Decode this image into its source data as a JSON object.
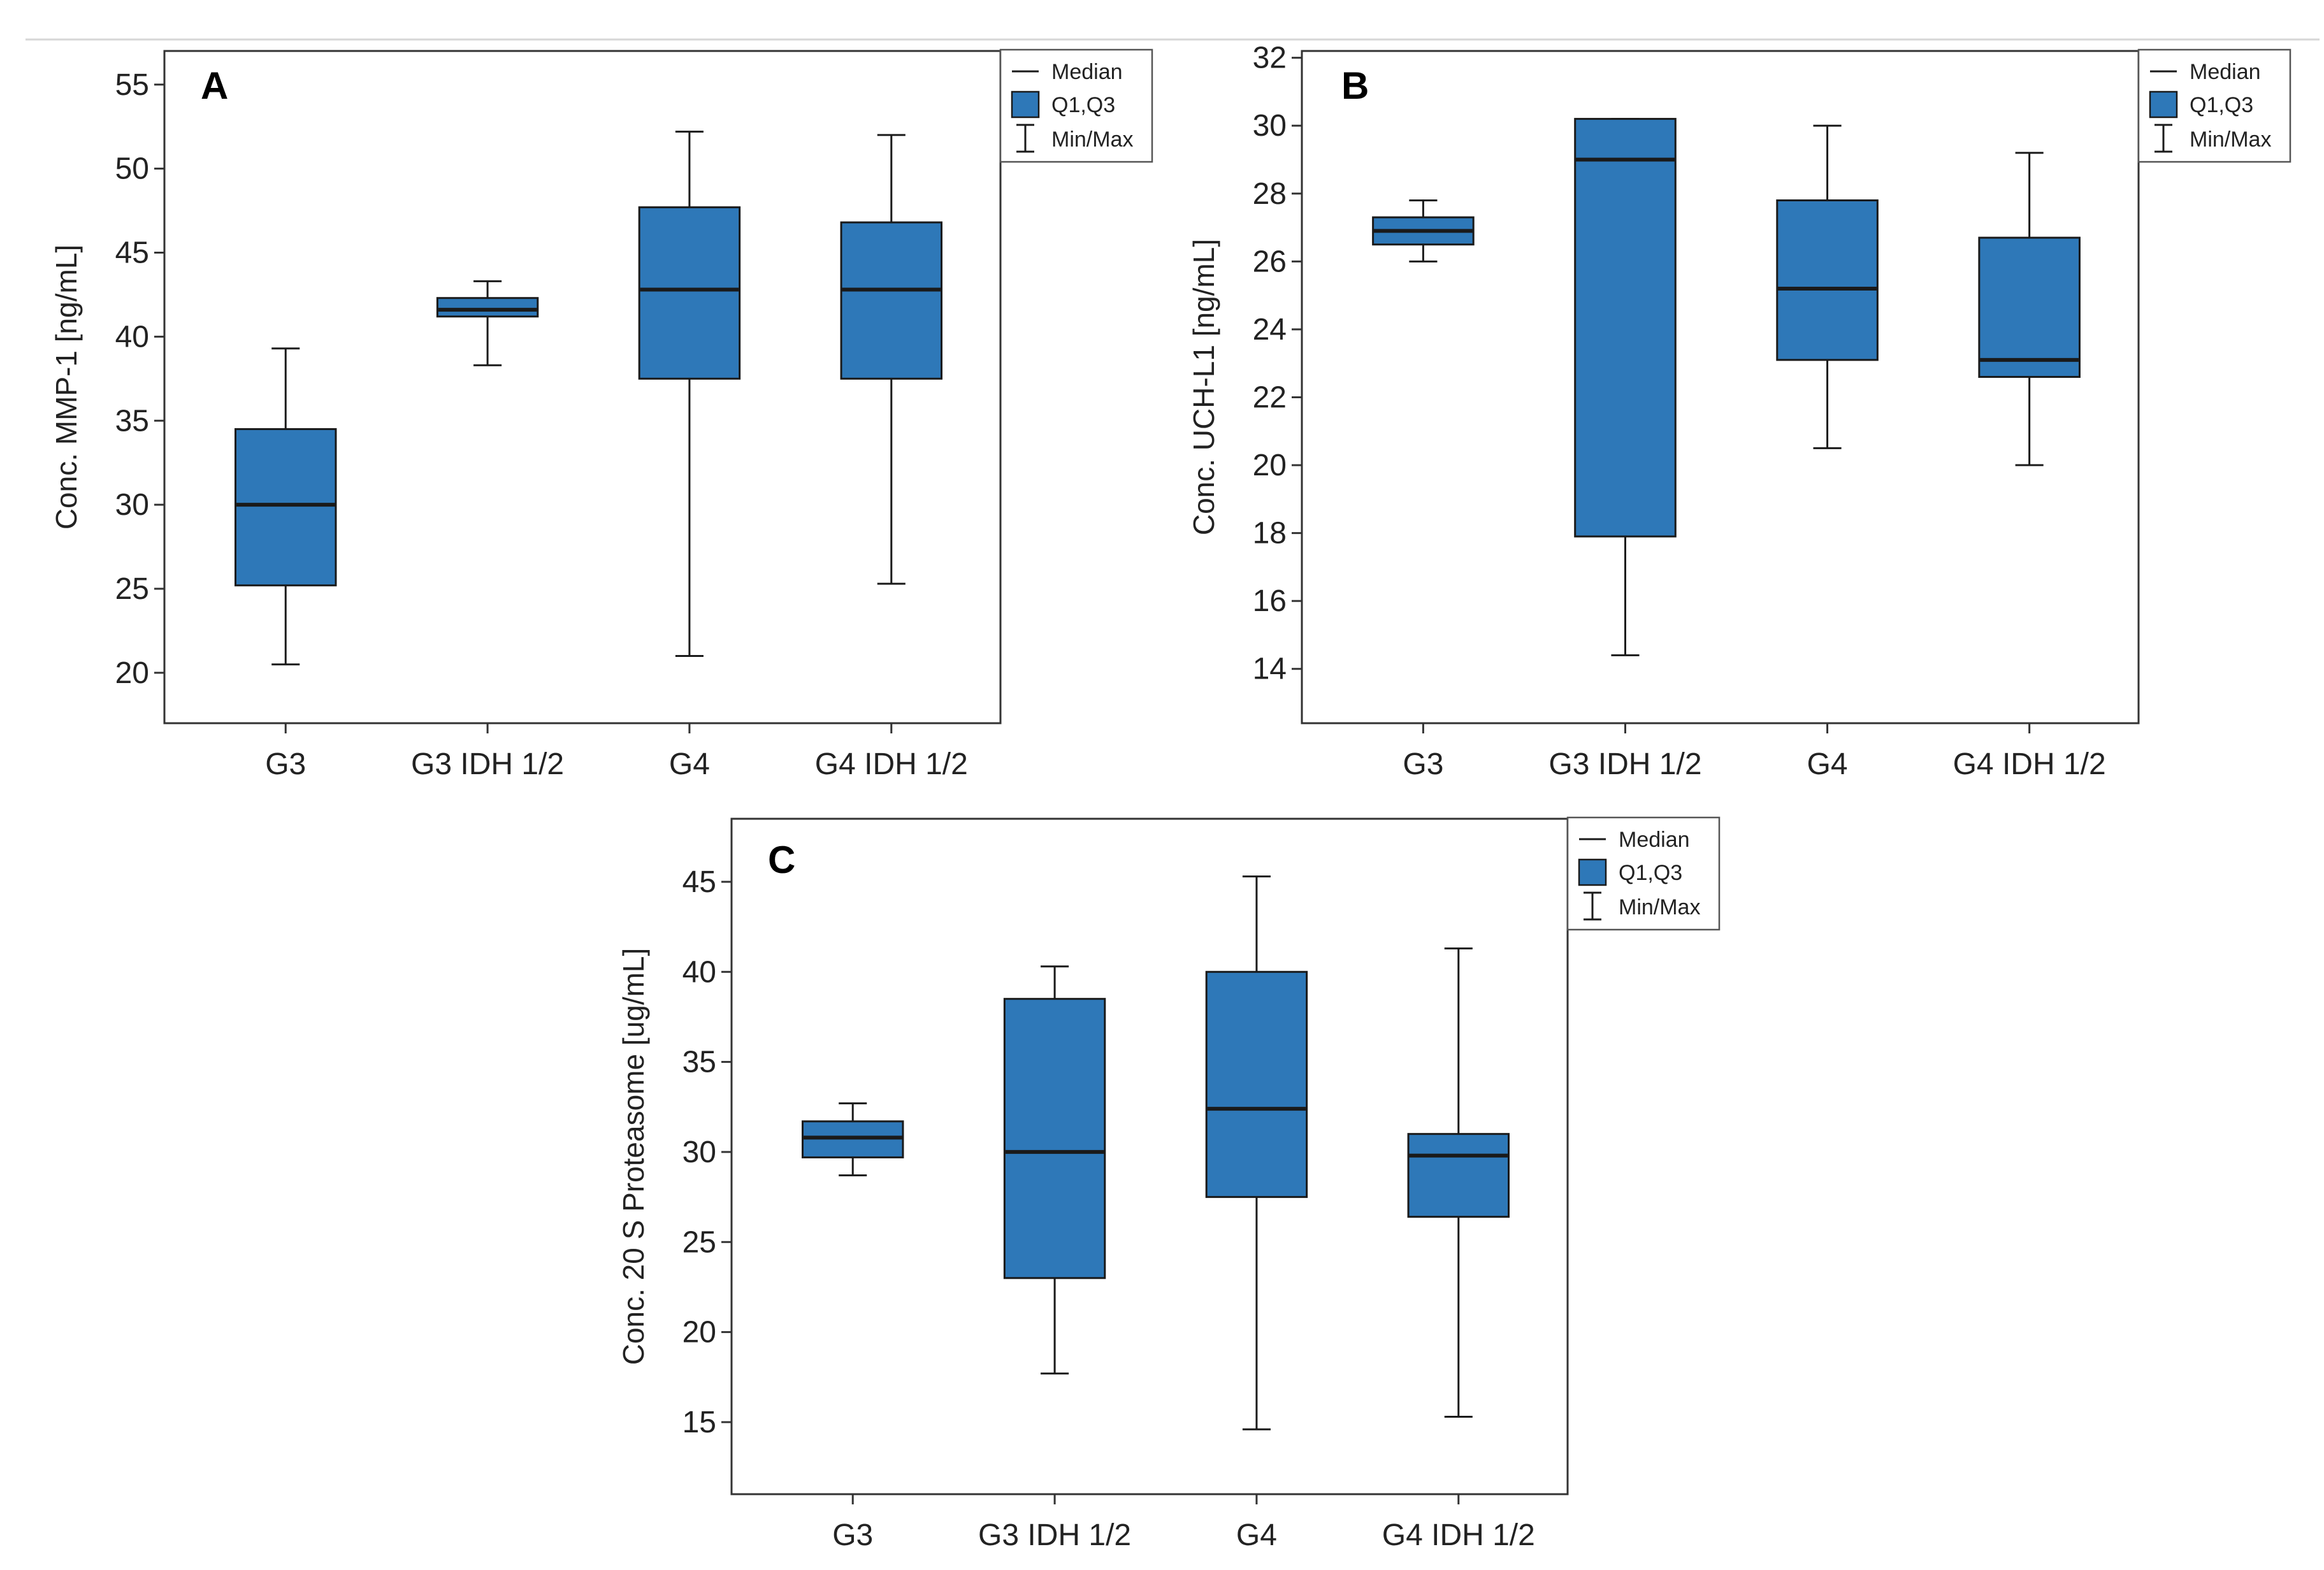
{
  "figure": {
    "legend": {
      "median": "Median",
      "quartiles": "Q1,Q3",
      "minmax": "Min/Max"
    }
  },
  "chart_data": [
    {
      "type": "boxplot",
      "panel": "A",
      "ylabel": "Conc. MMP-1 [ng/mL]",
      "ylim": [
        17,
        57
      ],
      "yticks": [
        20,
        25,
        30,
        35,
        40,
        45,
        50,
        55
      ],
      "categories": [
        "G3",
        "G3 IDH 1/2",
        "G4",
        "G4 IDH 1/2"
      ],
      "colors": {
        "box": "#2e78b8",
        "line": "#1a1a1a"
      },
      "boxes": [
        {
          "min": 20.5,
          "q1": 25.2,
          "median": 30.0,
          "q3": 34.5,
          "max": 39.3
        },
        {
          "min": 38.3,
          "q1": 41.2,
          "median": 41.6,
          "q3": 42.3,
          "max": 43.3
        },
        {
          "min": 21.0,
          "q1": 37.5,
          "median": 42.8,
          "q3": 47.7,
          "max": 52.2
        },
        {
          "min": 25.3,
          "q1": 37.5,
          "median": 42.8,
          "q3": 46.8,
          "max": 52.0
        }
      ]
    },
    {
      "type": "boxplot",
      "panel": "B",
      "ylabel": "Conc. UCH-L1 [ng/mL]",
      "ylim": [
        12.4,
        32.2
      ],
      "yticks": [
        14,
        16,
        18,
        20,
        22,
        24,
        26,
        28,
        30,
        32
      ],
      "categories": [
        "G3",
        "G3 IDH 1/2",
        "G4",
        "G4 IDH 1/2"
      ],
      "colors": {
        "box": "#2e78b8",
        "line": "#1a1a1a"
      },
      "boxes": [
        {
          "min": 26.0,
          "q1": 26.5,
          "median": 26.9,
          "q3": 27.3,
          "max": 27.8
        },
        {
          "min": 14.4,
          "q1": 17.9,
          "median": 29.0,
          "q3": 30.2,
          "max": 30.2
        },
        {
          "min": 20.5,
          "q1": 23.1,
          "median": 25.2,
          "q3": 27.8,
          "max": 30.0
        },
        {
          "min": 20.0,
          "q1": 22.6,
          "median": 23.1,
          "q3": 26.7,
          "max": 29.2
        }
      ]
    },
    {
      "type": "boxplot",
      "panel": "C",
      "ylabel": "Conc. 20 S Proteasome [ug/mL]",
      "ylim": [
        11.0,
        48.5
      ],
      "yticks": [
        15,
        20,
        25,
        30,
        35,
        40,
        45
      ],
      "categories": [
        "G3",
        "G3 IDH 1/2",
        "G4",
        "G4 IDH 1/2"
      ],
      "colors": {
        "box": "#2e78b8",
        "line": "#1a1a1a"
      },
      "boxes": [
        {
          "min": 28.7,
          "q1": 29.7,
          "median": 30.8,
          "q3": 31.7,
          "max": 32.7
        },
        {
          "min": 17.7,
          "q1": 23.0,
          "median": 30.0,
          "q3": 38.5,
          "max": 40.3
        },
        {
          "min": 14.6,
          "q1": 27.5,
          "median": 32.4,
          "q3": 40.0,
          "max": 45.3
        },
        {
          "min": 15.3,
          "q1": 26.4,
          "median": 29.8,
          "q3": 31.0,
          "max": 41.3
        }
      ]
    }
  ]
}
